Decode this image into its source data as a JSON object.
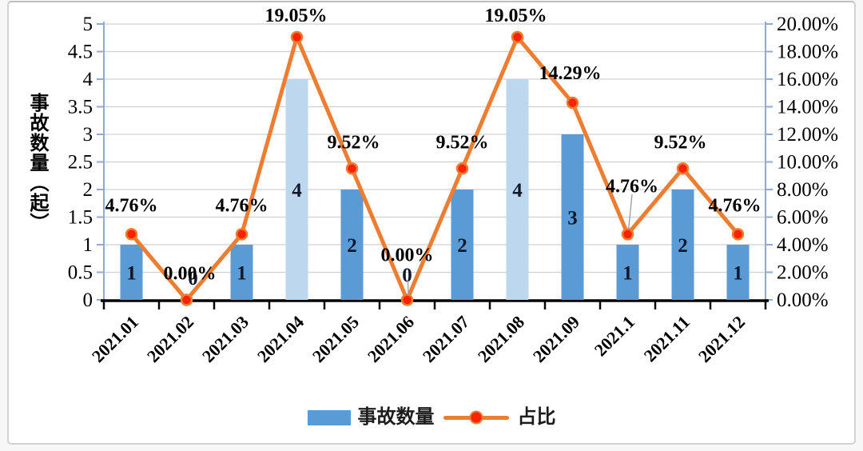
{
  "chart_data": {
    "type": "bar",
    "subtype": "combo-bar-line-dual-axis",
    "title": "",
    "categories": [
      "2021.01",
      "2021.02",
      "2021.03",
      "2021.04",
      "2021.05",
      "2021.06",
      "2021.07",
      "2021.08",
      "2021.09",
      "2021.1",
      "2021.11",
      "2021.12"
    ],
    "series": [
      {
        "name": "事故数量",
        "type": "bar",
        "axis": "left",
        "values": [
          1,
          0,
          1,
          4,
          2,
          0,
          2,
          4,
          3,
          1,
          2,
          1
        ],
        "labels": [
          "1",
          "0",
          "1",
          "4",
          "2",
          "0",
          "2",
          "4",
          "3",
          "1",
          "2",
          "1"
        ],
        "color": "#5B9BD5",
        "highlight_color": "#BDD7EE",
        "highlight_indices": [
          3,
          7
        ]
      },
      {
        "name": "占比",
        "type": "line",
        "axis": "right",
        "values_pct": [
          4.76,
          0,
          4.76,
          19.05,
          9.52,
          0,
          9.52,
          19.05,
          14.29,
          4.76,
          9.52,
          4.76
        ],
        "labels": [
          "4.76%",
          "0.00%",
          "4.76%",
          "19.05%",
          "9.52%",
          "0.00%",
          "9.52%",
          "19.05%",
          "14.29%",
          "4.76%",
          "9.52%",
          "4.76%"
        ],
        "color": "#ED7D31",
        "marker_color": "#FF2200"
      }
    ],
    "left_axis": {
      "label": "事故数量（起）",
      "min": 0,
      "max": 5,
      "step": 0.5,
      "ticks": [
        "5",
        "4.5",
        "4",
        "3.5",
        "3",
        "2.5",
        "2",
        "1.5",
        "1",
        "0.5",
        "0"
      ]
    },
    "right_axis": {
      "min": 0,
      "max": 20,
      "step": 2,
      "ticks": [
        "20.00%",
        "18.00%",
        "16.00%",
        "14.00%",
        "12.00%",
        "10.00%",
        "8.00%",
        "6.00%",
        "4.00%",
        "2.00%",
        "0.00%"
      ]
    },
    "legend": [
      {
        "label": "事故数量",
        "swatch": "bar"
      },
      {
        "label": "占比",
        "swatch": "line"
      }
    ],
    "grid": true,
    "legend_position": "bottom",
    "colors": {
      "bar": "#5B9BD5",
      "bar_light": "#BDD7EE",
      "line": "#ED7D31",
      "marker": "#FF2200",
      "grid": "#D0D0D0",
      "axis_blue": "#8EAADB",
      "axis_black": "#000000",
      "bar_label": "#10182B",
      "leader": "#9A9A9A"
    }
  }
}
